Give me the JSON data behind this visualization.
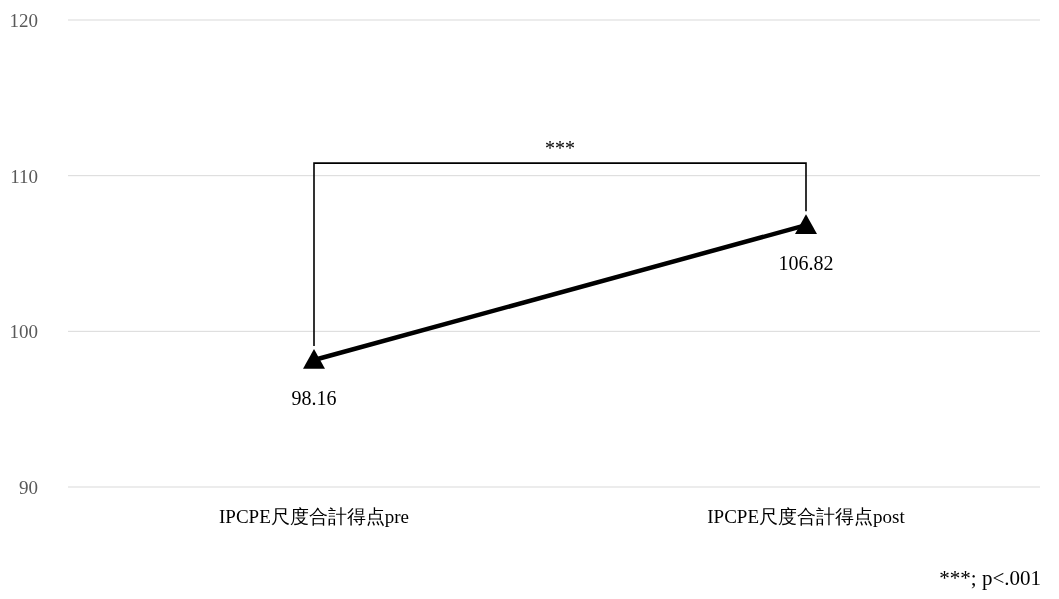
{
  "chart_data": {
    "type": "line",
    "categories": [
      "IPCPE尺度合計得点pre",
      "IPCPE尺度合計得点post"
    ],
    "series": [
      {
        "color": "#000000",
        "values": [
          98.16,
          106.82
        ]
      }
    ],
    "ylim": [
      90,
      120
    ],
    "yticks": [
      90,
      100,
      110,
      120
    ],
    "grid": "y",
    "marker": "triangle",
    "line_style": "solid",
    "data_labels": true,
    "annotations": [
      "***",
      "***; p<.001"
    ]
  }
}
